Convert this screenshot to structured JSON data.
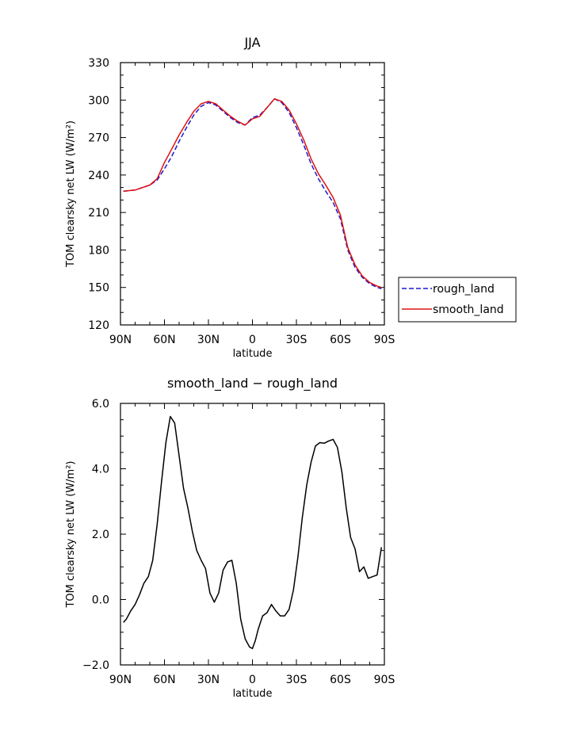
{
  "chart_data": [
    {
      "type": "line",
      "title": "JJA",
      "xlabel": "latitude",
      "ylabel": "TOM clearsky net LW (W/m²)",
      "xlim": [
        90,
        -90
      ],
      "ylim": [
        120,
        330
      ],
      "x_ticks": [
        90,
        60,
        30,
        0,
        -30,
        -60,
        -90
      ],
      "x_tick_labels": [
        "90N",
        "60N",
        "30N",
        "0",
        "30S",
        "60S",
        "90S"
      ],
      "y_ticks": [
        120,
        150,
        180,
        210,
        240,
        270,
        300,
        330
      ],
      "y_tick_labels": [
        "120",
        "150",
        "180",
        "210",
        "240",
        "270",
        "300",
        "330"
      ],
      "legend": "outside-right",
      "grid": false,
      "series": [
        {
          "name": "rough_land",
          "color": "#1a1acc",
          "style": "dashed",
          "x": [
            88,
            80,
            70,
            65,
            60,
            55,
            50,
            45,
            40,
            35,
            30,
            25,
            20,
            15,
            10,
            5,
            0,
            -5,
            -10,
            -15,
            -20,
            -25,
            -30,
            -35,
            -40,
            -45,
            -50,
            -55,
            -60,
            -65,
            -70,
            -75,
            -80,
            -85,
            -88
          ],
          "y": [
            227,
            228,
            232,
            236,
            245,
            255,
            267,
            278,
            288,
            295,
            298,
            296,
            291,
            286,
            282,
            280,
            286,
            288,
            294,
            301,
            298,
            290,
            278,
            264,
            249,
            237,
            227,
            218,
            205,
            180,
            166,
            158,
            153,
            150,
            149
          ]
        },
        {
          "name": "smooth_land",
          "color": "#e01010",
          "style": "solid",
          "x": [
            88,
            80,
            70,
            65,
            60,
            55,
            50,
            45,
            40,
            35,
            30,
            25,
            20,
            15,
            10,
            5,
            0,
            -5,
            -10,
            -15,
            -20,
            -25,
            -30,
            -35,
            -40,
            -45,
            -50,
            -55,
            -60,
            -65,
            -70,
            -75,
            -80,
            -85,
            -88
          ],
          "y": [
            227,
            228,
            232,
            237,
            250,
            261,
            272,
            282,
            291,
            297,
            299,
            297,
            292,
            287,
            283,
            280,
            285,
            287,
            294,
            301,
            299,
            292,
            281,
            268,
            253,
            241,
            232,
            222,
            208,
            182,
            168,
            159,
            154,
            151,
            150
          ]
        }
      ]
    },
    {
      "type": "line",
      "title": "smooth_land − rough_land",
      "xlabel": "latitude",
      "ylabel": "TOM clearsky net LW (W/m²)",
      "xlim": [
        90,
        -90
      ],
      "ylim": [
        -2.0,
        6.0
      ],
      "x_ticks": [
        90,
        60,
        30,
        0,
        -30,
        -60,
        -90
      ],
      "x_tick_labels": [
        "90N",
        "60N",
        "30N",
        "0",
        "30S",
        "60S",
        "90S"
      ],
      "y_ticks": [
        -2.0,
        0.0,
        2.0,
        4.0,
        6.0
      ],
      "y_tick_labels": [
        "−2.0",
        "0.0",
        "2.0",
        "4.0",
        "6.0"
      ],
      "grid": false,
      "series": [
        {
          "color": "#000000",
          "style": "solid",
          "x": [
            88,
            86,
            83,
            80,
            77,
            74,
            71,
            68,
            65,
            62,
            59,
            56,
            53,
            50,
            47,
            44,
            41,
            38,
            35,
            32,
            29,
            26,
            23,
            20,
            17,
            14,
            11,
            8,
            5,
            2,
            0,
            -2,
            -4,
            -7,
            -10,
            -13,
            -16,
            -19,
            -22,
            -25,
            -28,
            -31,
            -34,
            -37,
            -40,
            -43,
            -46,
            -49,
            -52,
            -55,
            -58,
            -61,
            -64,
            -67,
            -70,
            -73,
            -76,
            -79,
            -82,
            -85,
            -88
          ],
          "y": [
            -0.7,
            -0.6,
            -0.35,
            -0.15,
            0.15,
            0.5,
            0.7,
            1.2,
            2.3,
            3.6,
            4.8,
            5.6,
            5.4,
            4.4,
            3.4,
            2.8,
            2.1,
            1.5,
            1.2,
            0.95,
            0.2,
            -0.08,
            0.2,
            0.9,
            1.15,
            1.2,
            0.5,
            -0.6,
            -1.2,
            -1.45,
            -1.5,
            -1.25,
            -0.9,
            -0.5,
            -0.4,
            -0.15,
            -0.35,
            -0.5,
            -0.5,
            -0.3,
            0.3,
            1.3,
            2.5,
            3.5,
            4.2,
            4.7,
            4.8,
            4.78,
            4.85,
            4.9,
            4.65,
            3.9,
            2.8,
            1.9,
            1.55,
            0.85,
            1.0,
            0.65,
            0.7,
            0.75,
            1.6
          ]
        }
      ]
    }
  ]
}
